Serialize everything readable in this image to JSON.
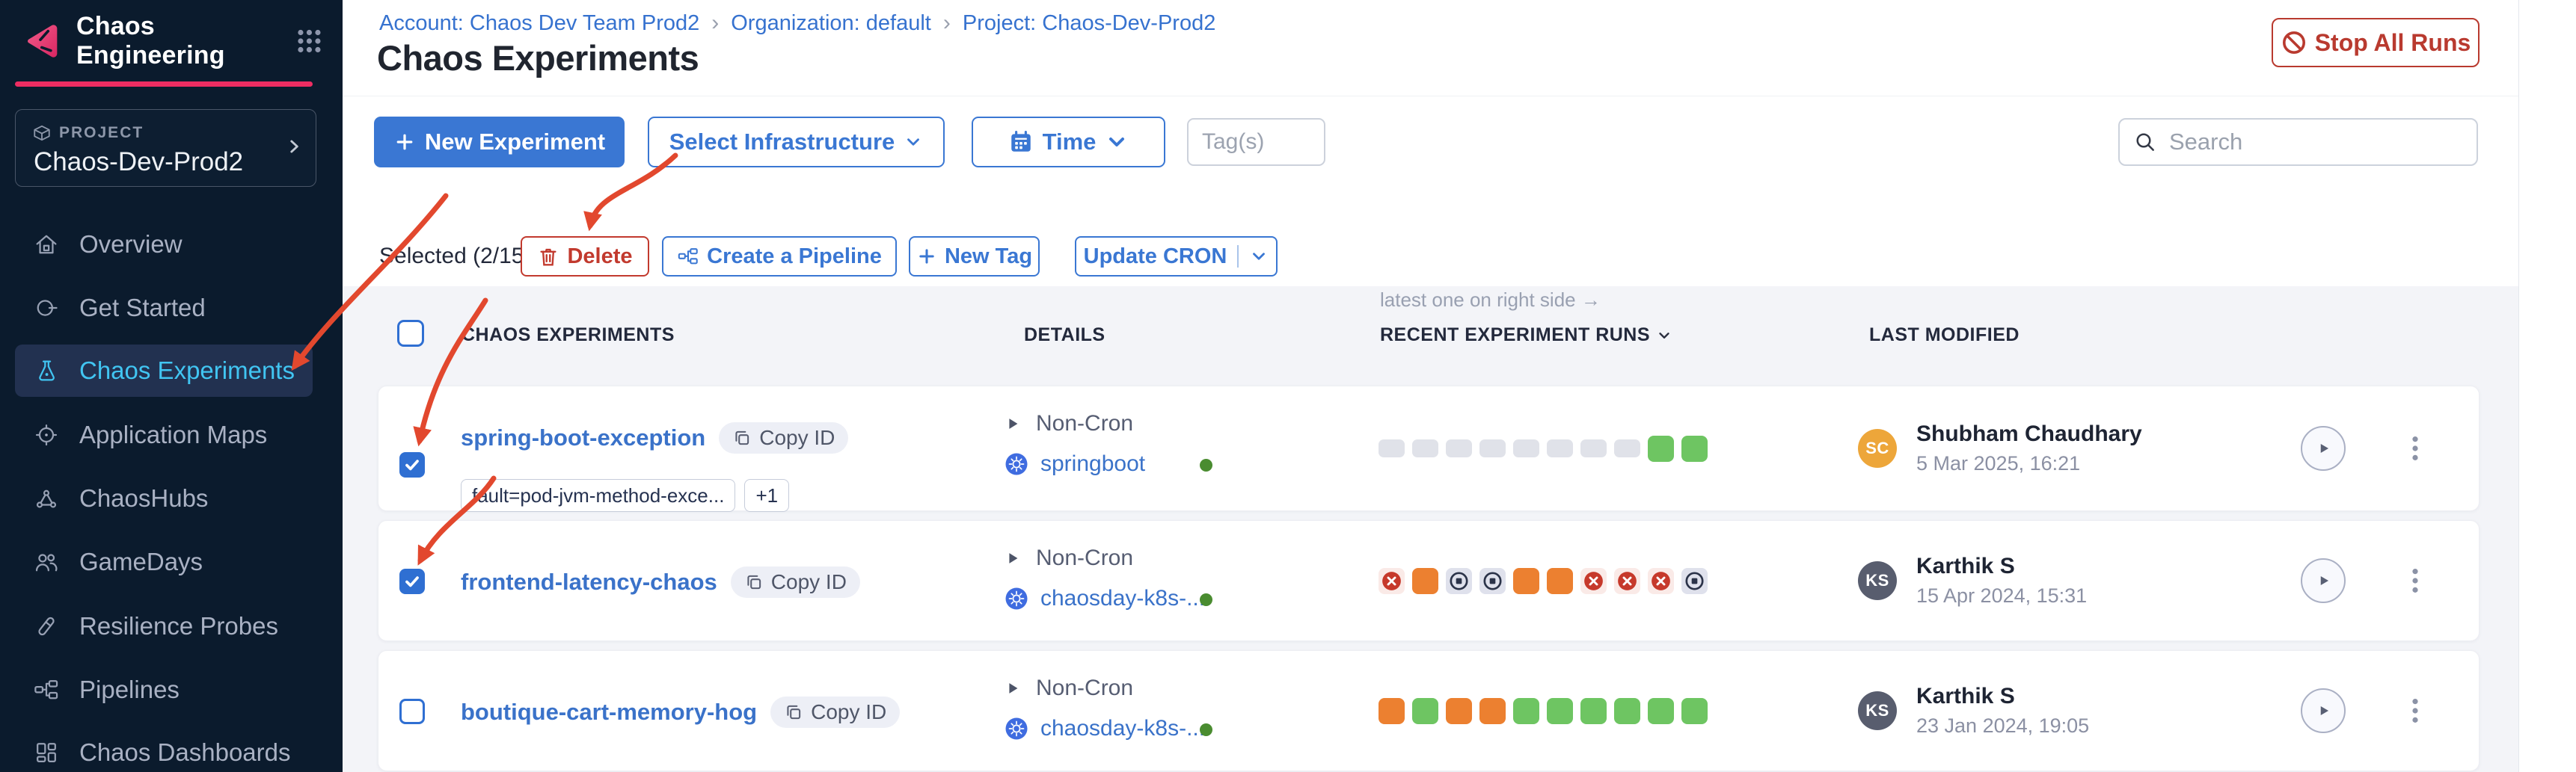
{
  "app": {
    "title": "Chaos Engineering"
  },
  "sidebar": {
    "project_label": "PROJECT",
    "project_name": "Chaos-Dev-Prod2",
    "items": [
      {
        "label": "Overview",
        "icon": "home-icon",
        "active": false
      },
      {
        "label": "Get Started",
        "icon": "get-started-icon",
        "active": false
      },
      {
        "label": "Chaos Experiments",
        "icon": "flask-icon",
        "active": true
      },
      {
        "label": "Application Maps",
        "icon": "application-maps-icon",
        "active": false
      },
      {
        "label": "ChaosHubs",
        "icon": "chaoshubs-icon",
        "active": false
      },
      {
        "label": "GameDays",
        "icon": "gamedays-icon",
        "active": false
      },
      {
        "label": "Resilience Probes",
        "icon": "probe-icon",
        "active": false
      },
      {
        "label": "Pipelines",
        "icon": "pipelines-icon",
        "active": false
      },
      {
        "label": "Chaos Dashboards",
        "icon": "dashboards-icon",
        "active": false
      }
    ]
  },
  "breadcrumb": {
    "account": "Account: Chaos Dev Team Prod2",
    "org": "Organization: default",
    "project": "Project: Chaos-Dev-Prod2",
    "separator": "›"
  },
  "page": {
    "title": "Chaos Experiments",
    "stop_all_runs": "Stop All Runs"
  },
  "toolbar": {
    "new_experiment": "New Experiment",
    "select_infrastructure": "Select Infrastructure",
    "time": "Time",
    "tags_placeholder": "Tag(s)",
    "search_placeholder": "Search"
  },
  "selection": {
    "label": "Selected (2/15)",
    "delete": "Delete",
    "create_pipeline": "Create a Pipeline",
    "new_tag": "New Tag",
    "update_cron": "Update CRON"
  },
  "table": {
    "runs_note": "latest one on right side →",
    "headers": {
      "experiments": "CHAOS EXPERIMENTS",
      "details": "DETAILS",
      "runs": "RECENT EXPERIMENT RUNS",
      "modified": "LAST MODIFIED"
    },
    "rows": [
      {
        "selected": true,
        "name": "spring-boot-exception",
        "copy_id": "Copy ID",
        "tags": [
          "fault=pod-jvm-method-exce...",
          "+1"
        ],
        "schedule": "Non-Cron",
        "infrastructure": "springboot",
        "runs": [
          "na",
          "na",
          "na",
          "na",
          "na",
          "na",
          "na",
          "na",
          "completed",
          "completed"
        ],
        "modified": {
          "initials": "SC",
          "avatar_color": "#EDA63A",
          "name": "Shubham Chaudhary",
          "date": "5 Mar 2025, 16:21"
        }
      },
      {
        "selected": true,
        "name": "frontend-latency-chaos",
        "copy_id": "Copy ID",
        "tags": [],
        "schedule": "Non-Cron",
        "infrastructure": "chaosday-k8s-...",
        "runs": [
          "failed",
          "running",
          "stopped",
          "stopped",
          "running",
          "running",
          "failed",
          "failed",
          "failed",
          "stopped"
        ],
        "modified": {
          "initials": "KS",
          "avatar_color": "#585D6E",
          "name": "Karthik S",
          "date": "15 Apr 2024, 15:31"
        }
      },
      {
        "selected": false,
        "name": "boutique-cart-memory-hog",
        "copy_id": "Copy ID",
        "tags": [],
        "schedule": "Non-Cron",
        "infrastructure": "chaosday-k8s-...",
        "runs": [
          "running",
          "completed",
          "running",
          "running",
          "completed",
          "completed",
          "completed",
          "completed",
          "completed",
          "completed"
        ],
        "modified": {
          "initials": "KS",
          "avatar_color": "#585D6E",
          "name": "Karthik S",
          "date": "23 Jan 2024, 19:05"
        }
      }
    ]
  },
  "colors": {
    "sidebar_bg": "#0b1b2d",
    "accent_pink": "#ee2d62",
    "primary_blue": "#3a77d3",
    "link_blue": "#3a72c9",
    "active_item_blue": "#41c5f2",
    "danger_red": "#b93a2f",
    "annotation_red": "#e2482e",
    "run_completed_green": "#6ec562",
    "run_running_orange": "#ec8030",
    "run_failed_bg": "#faeae7",
    "run_stopped_bg": "#dfe1ec",
    "infra_ok_green": "#4a8c30"
  }
}
